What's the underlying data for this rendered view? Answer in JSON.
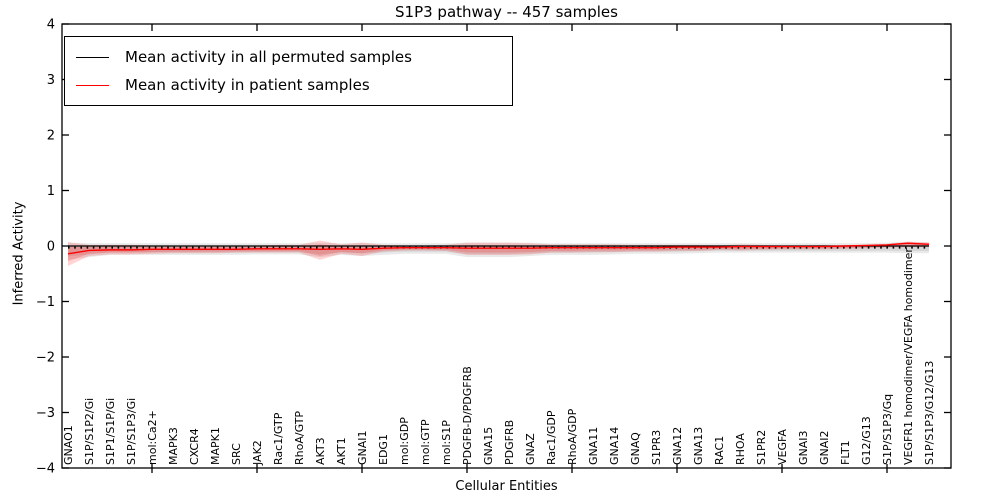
{
  "figure": {
    "title": "S1P3 pathway -- 457 samples",
    "xlabel": "Cellular Entities",
    "ylabel": "Inferred Activity"
  },
  "legend": {
    "items": [
      {
        "label": "Mean activity in all permuted samples",
        "color": "#000000"
      },
      {
        "label": "Mean activity in patient samples",
        "color": "#ff0000"
      }
    ]
  },
  "chart_data": {
    "type": "line",
    "title": "S1P3 pathway -- 457 samples",
    "xlabel": "Cellular Entities",
    "ylabel": "Inferred Activity",
    "ylim": [
      -4,
      4
    ],
    "yticks": [
      4,
      3,
      2,
      1,
      0,
      -1,
      -2,
      -3,
      -4
    ],
    "xtick_every": 5,
    "grid": false,
    "legend_position": "upper left",
    "categories": [
      "GNAO1",
      "S1P/S1P2/Gi",
      "S1P1/S1P/Gi",
      "S1P/S1P3/Gi",
      "mol:Ca2+",
      "MAPK3",
      "CXCR4",
      "MAPK1",
      "SRC",
      "JAK2",
      "Rac1/GTP",
      "RhoA/GTP",
      "AKT3",
      "AKT1",
      "GNAI1",
      "EDG1",
      "mol:GDP",
      "mol:GTP",
      "mol:S1P",
      "PDGFB-D/PDGFRB",
      "GNA15",
      "PDGFRB",
      "GNAZ",
      "Rac1/GDP",
      "RhoA/GDP",
      "GNA11",
      "GNA14",
      "GNAQ",
      "S1PR3",
      "GNA12",
      "GNA13",
      "RAC1",
      "RHOA",
      "S1PR2",
      "VEGFA",
      "GNAI3",
      "GNAI2",
      "FLT1",
      "G12/G13",
      "S1P/S1P3/Gq",
      "VEGFR1 homodimer/VEGFA homodimer",
      "S1P/S1P3/G12/G13"
    ],
    "series": [
      {
        "name": "Mean activity in all permuted samples",
        "color": "#000000",
        "style": "solid",
        "values": [
          0,
          0,
          0,
          0,
          0,
          0,
          0,
          0,
          0,
          0,
          0,
          0,
          0,
          0,
          0,
          0,
          0,
          0,
          0,
          0,
          0,
          0,
          0,
          0,
          0,
          0,
          0,
          0,
          0,
          0,
          0,
          0,
          0,
          0,
          0,
          0,
          0,
          0,
          0,
          0,
          0,
          0
        ]
      },
      {
        "name": "Mean activity in patient samples",
        "color": "#ff0000",
        "style": "solid",
        "values": [
          -0.14,
          -0.08,
          -0.07,
          -0.07,
          -0.06,
          -0.06,
          -0.06,
          -0.06,
          -0.06,
          -0.05,
          -0.05,
          -0.05,
          -0.06,
          -0.05,
          -0.06,
          -0.04,
          -0.03,
          -0.03,
          -0.03,
          -0.04,
          -0.04,
          -0.04,
          -0.04,
          -0.03,
          -0.03,
          -0.03,
          -0.03,
          -0.03,
          -0.03,
          -0.02,
          -0.02,
          -0.02,
          -0.01,
          -0.01,
          -0.01,
          -0.01,
          -0.01,
          0.0,
          0.01,
          0.02,
          0.05,
          0.03
        ]
      }
    ],
    "baseline_dotted": {
      "y": -0.03,
      "color": "#000000",
      "style": "dotted"
    },
    "bands": [
      {
        "name": "permuted-samples-band",
        "color": "#787878",
        "opacity": 0.16,
        "upper": [
          0.06,
          0.05,
          0.05,
          0.05,
          0.05,
          0.05,
          0.05,
          0.05,
          0.05,
          0.05,
          0.05,
          0.05,
          0.06,
          0.05,
          0.06,
          0.05,
          0.05,
          0.05,
          0.05,
          0.06,
          0.06,
          0.06,
          0.06,
          0.05,
          0.05,
          0.05,
          0.05,
          0.05,
          0.05,
          0.05,
          0.05,
          0.05,
          0.05,
          0.05,
          0.05,
          0.05,
          0.05,
          0.05,
          0.05,
          0.06,
          0.07,
          0.07
        ],
        "lower": [
          -0.25,
          -0.2,
          -0.16,
          -0.16,
          -0.16,
          -0.16,
          -0.16,
          -0.16,
          -0.16,
          -0.15,
          -0.15,
          -0.15,
          -0.2,
          -0.16,
          -0.18,
          -0.16,
          -0.14,
          -0.14,
          -0.14,
          -0.2,
          -0.2,
          -0.2,
          -0.18,
          -0.16,
          -0.16,
          -0.16,
          -0.15,
          -0.14,
          -0.14,
          -0.14,
          -0.13,
          -0.12,
          -0.12,
          -0.12,
          -0.12,
          -0.12,
          -0.12,
          -0.12,
          -0.12,
          -0.12,
          -0.13,
          -0.13
        ]
      },
      {
        "name": "patient-samples-band",
        "color": "#ff0000",
        "opacity": 0.17,
        "upper": [
          0.07,
          0.02,
          0.02,
          0.02,
          0.01,
          0.01,
          0.01,
          0.01,
          0.01,
          0.01,
          0.02,
          0.02,
          0.1,
          0.03,
          0.06,
          0.02,
          0.01,
          0.01,
          0.02,
          0.06,
          0.06,
          0.06,
          0.05,
          0.03,
          0.03,
          0.03,
          0.03,
          0.02,
          0.02,
          0.02,
          0.02,
          0.01,
          0.03,
          0.02,
          0.01,
          0.01,
          0.02,
          0.01,
          0.02,
          0.04,
          0.08,
          0.06
        ],
        "lower": [
          -0.36,
          -0.18,
          -0.15,
          -0.15,
          -0.14,
          -0.13,
          -0.13,
          -0.13,
          -0.12,
          -0.12,
          -0.12,
          -0.12,
          -0.25,
          -0.14,
          -0.18,
          -0.1,
          -0.08,
          -0.08,
          -0.09,
          -0.16,
          -0.16,
          -0.16,
          -0.15,
          -0.12,
          -0.12,
          -0.11,
          -0.11,
          -0.1,
          -0.1,
          -0.09,
          -0.09,
          -0.07,
          -0.08,
          -0.07,
          -0.06,
          -0.06,
          -0.06,
          -0.05,
          -0.04,
          -0.03,
          -0.02,
          -0.02
        ]
      }
    ]
  }
}
